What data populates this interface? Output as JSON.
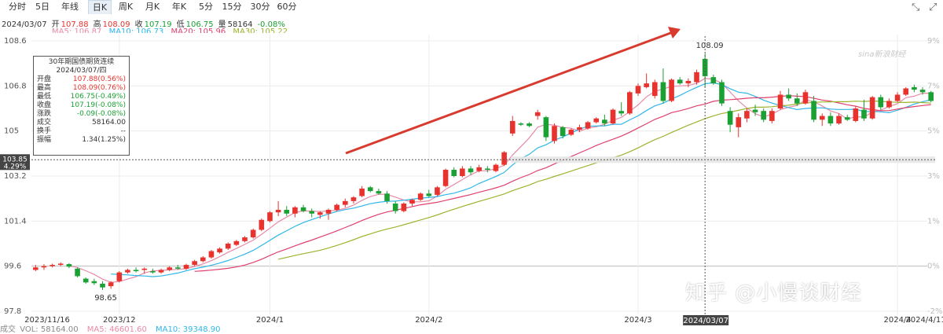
{
  "tabs": [
    "分时",
    "5日",
    "年线",
    "日K",
    "周K",
    "月K",
    "年K",
    "5分",
    "15分",
    "30分",
    "60分"
  ],
  "active_tab": 3,
  "toolbar_icons": [
    "collapse-icon",
    "expand-icon"
  ],
  "info": {
    "date": "2024/03/07",
    "open_label": "开",
    "open": "107.88",
    "high_label": "高",
    "high": "108.09",
    "close_label": "收",
    "close": "107.19",
    "low_label": "低",
    "low": "106.75",
    "vol_label": "量",
    "vol": "58164",
    "change": "-0.08%"
  },
  "ma": {
    "ma5": "MA5: 106.87",
    "ma10": "MA10: 106.73",
    "ma20": "MA20: 105.96",
    "ma30": "MA30: 105.22"
  },
  "tooltip": {
    "title": "30年期国债期货连续",
    "date": "2024/03/07/四",
    "rows": [
      {
        "label": "开盘",
        "value": "107.88(0.56%)",
        "color": "#e8322d"
      },
      {
        "label": "最高",
        "value": "108.09(0.76%)",
        "color": "#e8322d"
      },
      {
        "label": "最低",
        "value": "106.75(-0.49%)",
        "color": "#1aa033"
      },
      {
        "label": "收盘",
        "value": "107.19(-0.08%)",
        "color": "#1aa033"
      },
      {
        "label": "涨跌",
        "value": "-0.09(-0.08%)",
        "color": "#1aa033"
      },
      {
        "label": "成交",
        "value": "58164.00",
        "color": "#333333"
      },
      {
        "label": "换手",
        "value": "--",
        "color": "#333333"
      },
      {
        "label": "振幅",
        "value": "1.34(1.25%)",
        "color": "#333333"
      }
    ]
  },
  "cursor_price": "103.85",
  "cursor_pct": "4.29%",
  "cursor_date": "2024/03/07",
  "peak_label": "108.09",
  "trough_label": "98.65",
  "watermark": "知乎 @小慢谈财经",
  "logo_text": "sina新浪财经",
  "volume": {
    "label": "成交",
    "vol": "VOL: 58164.00",
    "ma5": "MA5: 46601.60",
    "ma10": "MA10: 39348.90"
  },
  "colors": {
    "up": "#e8322d",
    "down": "#1aa033",
    "ma5": "#e88aa6",
    "ma10": "#2fb6e8",
    "ma20": "#e0406e",
    "ma30": "#9ab52e",
    "arrow": "#d83a2e"
  },
  "chart_data": {
    "type": "candlestick",
    "title": "30年期国债期货连续",
    "y_ticks": [
      "108.6",
      "106.8",
      "105",
      "103.2",
      "101.4",
      "99.6",
      "97.8"
    ],
    "y_ticks_right": [
      "9%",
      "7%",
      "5%",
      "3%",
      "1%",
      "0%",
      "-2%"
    ],
    "x_ticks": [
      "2023/11/16",
      "2023/12",
      "2024/1",
      "2024/2",
      "2024/3",
      "2024/4",
      "2024/4/11"
    ],
    "ylim": [
      97.8,
      108.6
    ],
    "reference_close": 99.6,
    "candles": [
      [
        99.45,
        99.65,
        99.4,
        99.55
      ],
      [
        99.55,
        99.68,
        99.45,
        99.6
      ],
      [
        99.6,
        99.7,
        99.55,
        99.65
      ],
      [
        99.65,
        99.75,
        99.6,
        99.7
      ],
      [
        99.68,
        99.72,
        99.52,
        99.58
      ],
      [
        99.5,
        99.55,
        99.15,
        99.2
      ],
      [
        99.1,
        99.15,
        98.9,
        98.95
      ],
      [
        99.0,
        99.1,
        98.85,
        98.92
      ],
      [
        98.9,
        99.0,
        98.65,
        98.75
      ],
      [
        98.8,
        99.0,
        98.7,
        98.95
      ],
      [
        99.0,
        99.4,
        98.95,
        99.35
      ],
      [
        99.35,
        99.5,
        99.3,
        99.45
      ],
      [
        99.45,
        99.55,
        99.35,
        99.4
      ],
      [
        99.45,
        99.55,
        99.3,
        99.5
      ],
      [
        99.4,
        99.5,
        99.3,
        99.35
      ],
      [
        99.35,
        99.5,
        99.3,
        99.45
      ],
      [
        99.45,
        99.6,
        99.4,
        99.55
      ],
      [
        99.55,
        99.65,
        99.45,
        99.5
      ],
      [
        99.5,
        99.7,
        99.45,
        99.65
      ],
      [
        99.65,
        99.85,
        99.6,
        99.8
      ],
      [
        99.8,
        100.0,
        99.75,
        99.95
      ],
      [
        99.95,
        100.25,
        99.9,
        100.2
      ],
      [
        100.15,
        100.35,
        100.1,
        100.3
      ],
      [
        100.3,
        100.55,
        100.25,
        100.5
      ],
      [
        100.45,
        100.65,
        100.4,
        100.6
      ],
      [
        100.6,
        100.8,
        100.55,
        100.75
      ],
      [
        100.75,
        101.1,
        100.7,
        101.05
      ],
      [
        101.05,
        101.5,
        101.0,
        101.45
      ],
      [
        101.4,
        101.8,
        101.35,
        101.75
      ],
      [
        101.75,
        102.2,
        101.6,
        101.85
      ],
      [
        101.85,
        102.0,
        101.6,
        101.7
      ],
      [
        101.7,
        102.0,
        101.55,
        101.95
      ],
      [
        101.95,
        102.05,
        101.75,
        101.8
      ],
      [
        101.8,
        101.9,
        101.55,
        101.7
      ],
      [
        101.65,
        101.8,
        101.5,
        101.75
      ],
      [
        101.7,
        101.9,
        101.45,
        101.85
      ],
      [
        101.85,
        102.1,
        101.8,
        102.05
      ],
      [
        102.05,
        102.3,
        101.95,
        102.2
      ],
      [
        102.2,
        102.4,
        102.1,
        102.35
      ],
      [
        102.4,
        102.8,
        102.35,
        102.7
      ],
      [
        102.75,
        102.8,
        102.55,
        102.6
      ],
      [
        102.6,
        102.7,
        102.45,
        102.5
      ],
      [
        102.5,
        102.6,
        102.1,
        102.2
      ],
      [
        102.1,
        102.2,
        101.7,
        101.8
      ],
      [
        101.8,
        102.15,
        101.75,
        102.1
      ],
      [
        102.1,
        102.3,
        102.0,
        102.25
      ],
      [
        102.25,
        102.55,
        102.2,
        102.5
      ],
      [
        102.5,
        102.65,
        102.35,
        102.4
      ],
      [
        102.45,
        102.8,
        102.4,
        102.75
      ],
      [
        102.8,
        103.5,
        102.75,
        103.45
      ],
      [
        103.45,
        103.55,
        103.15,
        103.2
      ],
      [
        103.2,
        103.6,
        103.15,
        103.5
      ],
      [
        103.5,
        103.6,
        103.25,
        103.35
      ],
      [
        103.4,
        103.65,
        103.35,
        103.55
      ],
      [
        103.5,
        103.6,
        103.35,
        103.45
      ],
      [
        103.4,
        103.7,
        103.35,
        103.65
      ],
      [
        103.65,
        104.2,
        103.6,
        104.15
      ],
      [
        104.9,
        105.6,
        104.8,
        105.4
      ],
      [
        105.3,
        105.35,
        105.2,
        105.25
      ],
      [
        105.3,
        105.35,
        105.15,
        105.2
      ],
      [
        105.6,
        105.85,
        105.45,
        105.75
      ],
      [
        105.55,
        105.6,
        104.6,
        104.75
      ],
      [
        104.6,
        105.3,
        104.5,
        105.2
      ],
      [
        105.15,
        105.2,
        104.7,
        104.8
      ],
      [
        104.85,
        105.1,
        104.8,
        105.05
      ],
      [
        105.05,
        105.25,
        104.95,
        105.15
      ],
      [
        105.1,
        105.4,
        105.05,
        105.35
      ],
      [
        105.35,
        105.55,
        105.3,
        105.5
      ],
      [
        105.45,
        105.65,
        105.2,
        105.3
      ],
      [
        105.3,
        105.9,
        105.25,
        105.85
      ],
      [
        105.8,
        106.15,
        105.6,
        105.7
      ],
      [
        105.7,
        106.6,
        105.65,
        106.55
      ],
      [
        106.5,
        106.9,
        106.4,
        106.8
      ],
      [
        106.75,
        107.3,
        106.7,
        106.9
      ],
      [
        106.4,
        107.05,
        106.3,
        106.95
      ],
      [
        106.95,
        107.5,
        106.1,
        106.2
      ],
      [
        106.2,
        107.1,
        106.15,
        107.05
      ],
      [
        107.05,
        107.15,
        106.85,
        106.9
      ],
      [
        106.9,
        107.1,
        106.75,
        107.0
      ],
      [
        106.95,
        107.45,
        106.85,
        107.35
      ],
      [
        107.88,
        108.09,
        106.75,
        107.19
      ],
      [
        107.15,
        107.25,
        106.85,
        106.9
      ],
      [
        106.95,
        107.05,
        106.0,
        106.1
      ],
      [
        105.8,
        105.95,
        104.95,
        105.25
      ],
      [
        105.15,
        105.7,
        104.75,
        105.55
      ],
      [
        105.5,
        105.9,
        105.35,
        105.8
      ],
      [
        105.85,
        106.05,
        105.6,
        105.75
      ],
      [
        105.8,
        105.9,
        105.35,
        105.45
      ],
      [
        105.4,
        105.9,
        105.3,
        105.8
      ],
      [
        105.9,
        106.6,
        105.85,
        106.45
      ],
      [
        106.45,
        106.7,
        106.2,
        106.3
      ],
      [
        106.3,
        106.5,
        106.0,
        106.1
      ],
      [
        106.1,
        106.65,
        106.05,
        106.55
      ],
      [
        106.2,
        106.4,
        105.35,
        105.45
      ],
      [
        105.45,
        105.7,
        105.2,
        105.6
      ],
      [
        105.6,
        105.75,
        105.2,
        105.3
      ],
      [
        105.3,
        105.7,
        105.25,
        105.6
      ],
      [
        105.55,
        105.65,
        105.4,
        105.45
      ],
      [
        105.4,
        106.0,
        105.35,
        105.9
      ],
      [
        105.85,
        106.25,
        105.4,
        105.5
      ],
      [
        105.5,
        106.4,
        105.45,
        106.35
      ],
      [
        106.35,
        106.45,
        105.85,
        105.95
      ],
      [
        105.95,
        106.3,
        105.9,
        106.2
      ],
      [
        106.2,
        106.55,
        106.15,
        106.45
      ],
      [
        106.45,
        106.75,
        106.4,
        106.7
      ],
      [
        106.75,
        106.85,
        106.55,
        106.65
      ],
      [
        106.65,
        106.75,
        106.45,
        106.55
      ],
      [
        106.55,
        106.6,
        106.15,
        106.2
      ]
    ]
  }
}
